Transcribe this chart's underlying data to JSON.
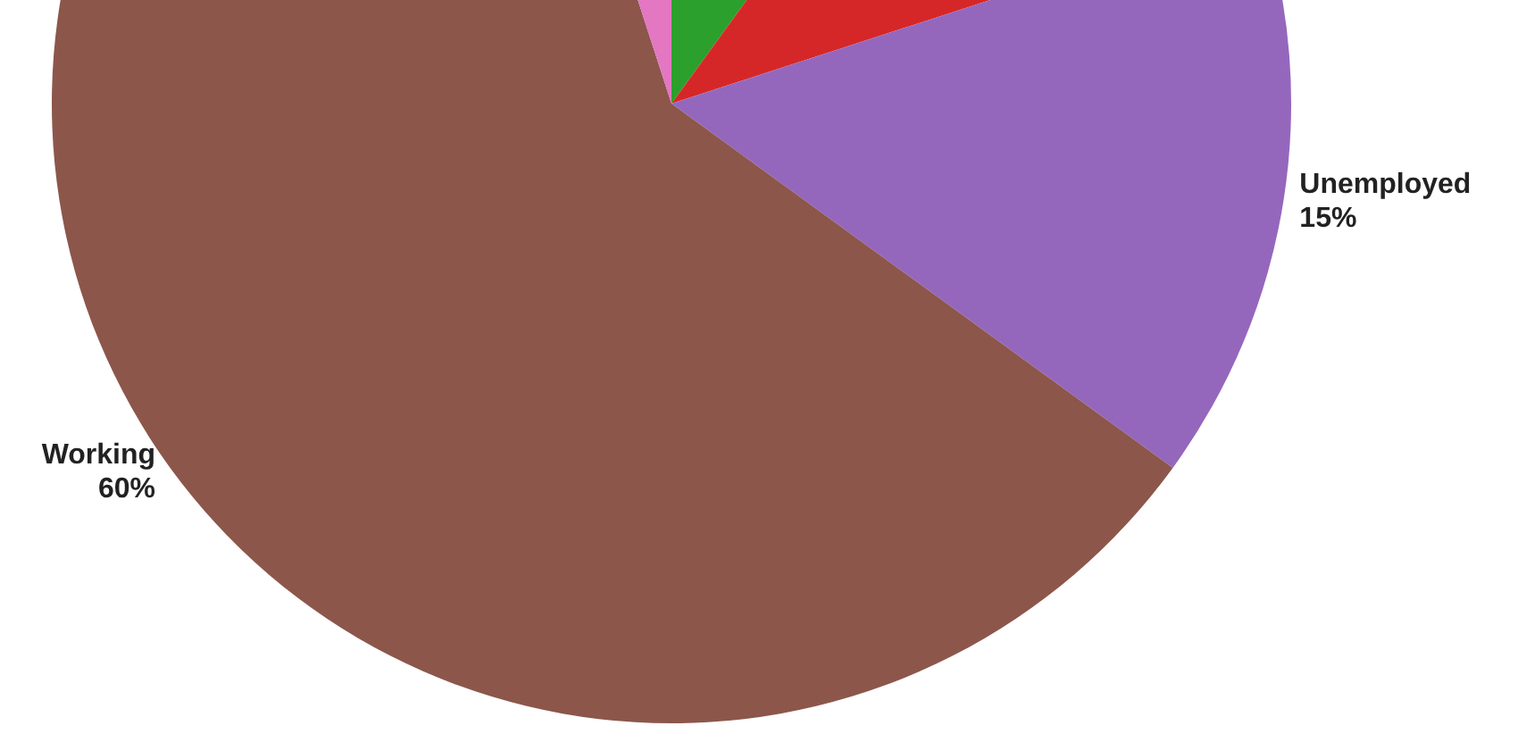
{
  "chart_data": {
    "type": "pie",
    "categories": [
      null,
      null,
      "Unemployed",
      "Working",
      null
    ],
    "values": [
      10,
      10,
      15,
      60,
      5
    ],
    "value_labels": [
      null,
      null,
      "15%",
      "60%",
      null
    ],
    "colors": [
      "#2ca02c",
      "#d62728",
      "#9467bd",
      "#8c564b",
      "#e377c2"
    ]
  }
}
